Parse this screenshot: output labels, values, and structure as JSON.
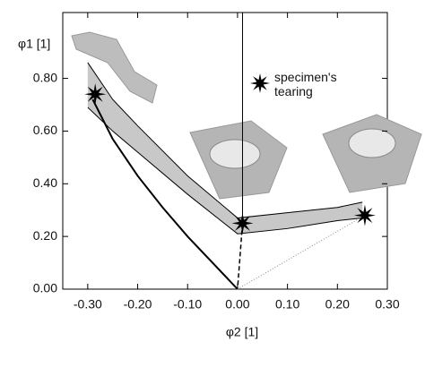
{
  "chart_data": {
    "type": "line",
    "x_label": "φ2 [1]",
    "y_label": "φ1 [1]",
    "xlim": [
      -0.35,
      0.3
    ],
    "ylim": [
      0,
      1.05
    ],
    "xticks": [
      {
        "value": -0.3,
        "label": "-0.30"
      },
      {
        "value": -0.2,
        "label": "-0.20"
      },
      {
        "value": -0.1,
        "label": "-0.10"
      },
      {
        "value": 0,
        "label": "0.00"
      },
      {
        "value": 0.1,
        "label": "0.10"
      },
      {
        "value": 0.2,
        "label": "0.20"
      },
      {
        "value": 0.3,
        "label": "0.30"
      }
    ],
    "yticks": [
      {
        "value": 0,
        "label": "0.00"
      },
      {
        "value": 0.2,
        "label": "0.20"
      },
      {
        "value": 0.4,
        "label": "0.40"
      },
      {
        "value": 0.6,
        "label": "0.60"
      },
      {
        "value": 0.8,
        "label": "0.80"
      }
    ],
    "band": {
      "color": "#c8c8c8",
      "x": [
        -0.3,
        -0.25,
        -0.2,
        -0.1,
        0,
        0.1,
        0.2,
        0.25
      ],
      "upper": [
        0.86,
        0.72,
        0.62,
        0.43,
        0.27,
        0.29,
        0.31,
        0.33
      ],
      "lower": [
        0.69,
        0.6,
        0.52,
        0.36,
        0.21,
        0.23,
        0.26,
        0.27
      ]
    },
    "series": [
      {
        "color": "#000000",
        "style": "solid",
        "width": 2,
        "x": [
          -0.29,
          -0.25,
          -0.2,
          -0.15,
          -0.1,
          -0.05,
          0
        ],
        "values": [
          0.72,
          0.57,
          0.43,
          0.31,
          0.2,
          0.1,
          0
        ]
      },
      {
        "color": "#000000",
        "style": "solid",
        "width": 1,
        "x": [
          0.01,
          0.01
        ],
        "values": [
          1.05,
          0.27
        ]
      },
      {
        "color": "#000000",
        "style": "dashed",
        "width": 1.5,
        "x": [
          0.01,
          0
        ],
        "values": [
          0.25,
          0
        ]
      },
      {
        "color": "#888888",
        "style": "dotted",
        "width": 1,
        "x": [
          0,
          0.255
        ],
        "values": [
          0,
          0.28
        ]
      }
    ],
    "markers": {
      "name": "specimen's tearing",
      "color": "#000000",
      "x": [
        -0.285,
        0.01,
        0.255
      ],
      "values": [
        0.74,
        0.25,
        0.28
      ]
    }
  }
}
